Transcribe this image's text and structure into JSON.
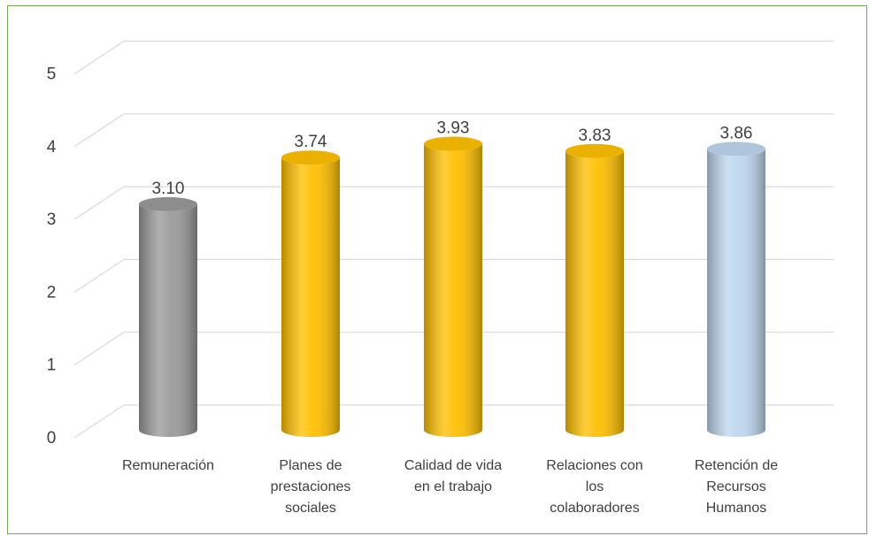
{
  "chart_data": {
    "type": "bar",
    "style": "3d-cylinder",
    "categories": [
      [
        "Remuneración"
      ],
      [
        "Planes de",
        "prestaciones",
        "sociales"
      ],
      [
        "Calidad de vida",
        "en el trabajo"
      ],
      [
        "Relaciones con",
        "los",
        "colaboradores"
      ],
      [
        "Retención de",
        "Recursos",
        "Humanos"
      ]
    ],
    "values": [
      3.1,
      3.74,
      3.93,
      3.83,
      3.86
    ],
    "data_labels": [
      "3.10",
      "3.74",
      "3.93",
      "3.83",
      "3.86"
    ],
    "colors": [
      "#9a9a9a",
      "#ffc000",
      "#ffc000",
      "#ffc000",
      "#bdd7ee"
    ],
    "ylim": [
      0,
      5
    ],
    "yticks": [
      "0",
      "1",
      "2",
      "3",
      "4",
      "5"
    ],
    "grid": true,
    "legend": "none",
    "title": "",
    "xlabel": "",
    "ylabel": ""
  }
}
